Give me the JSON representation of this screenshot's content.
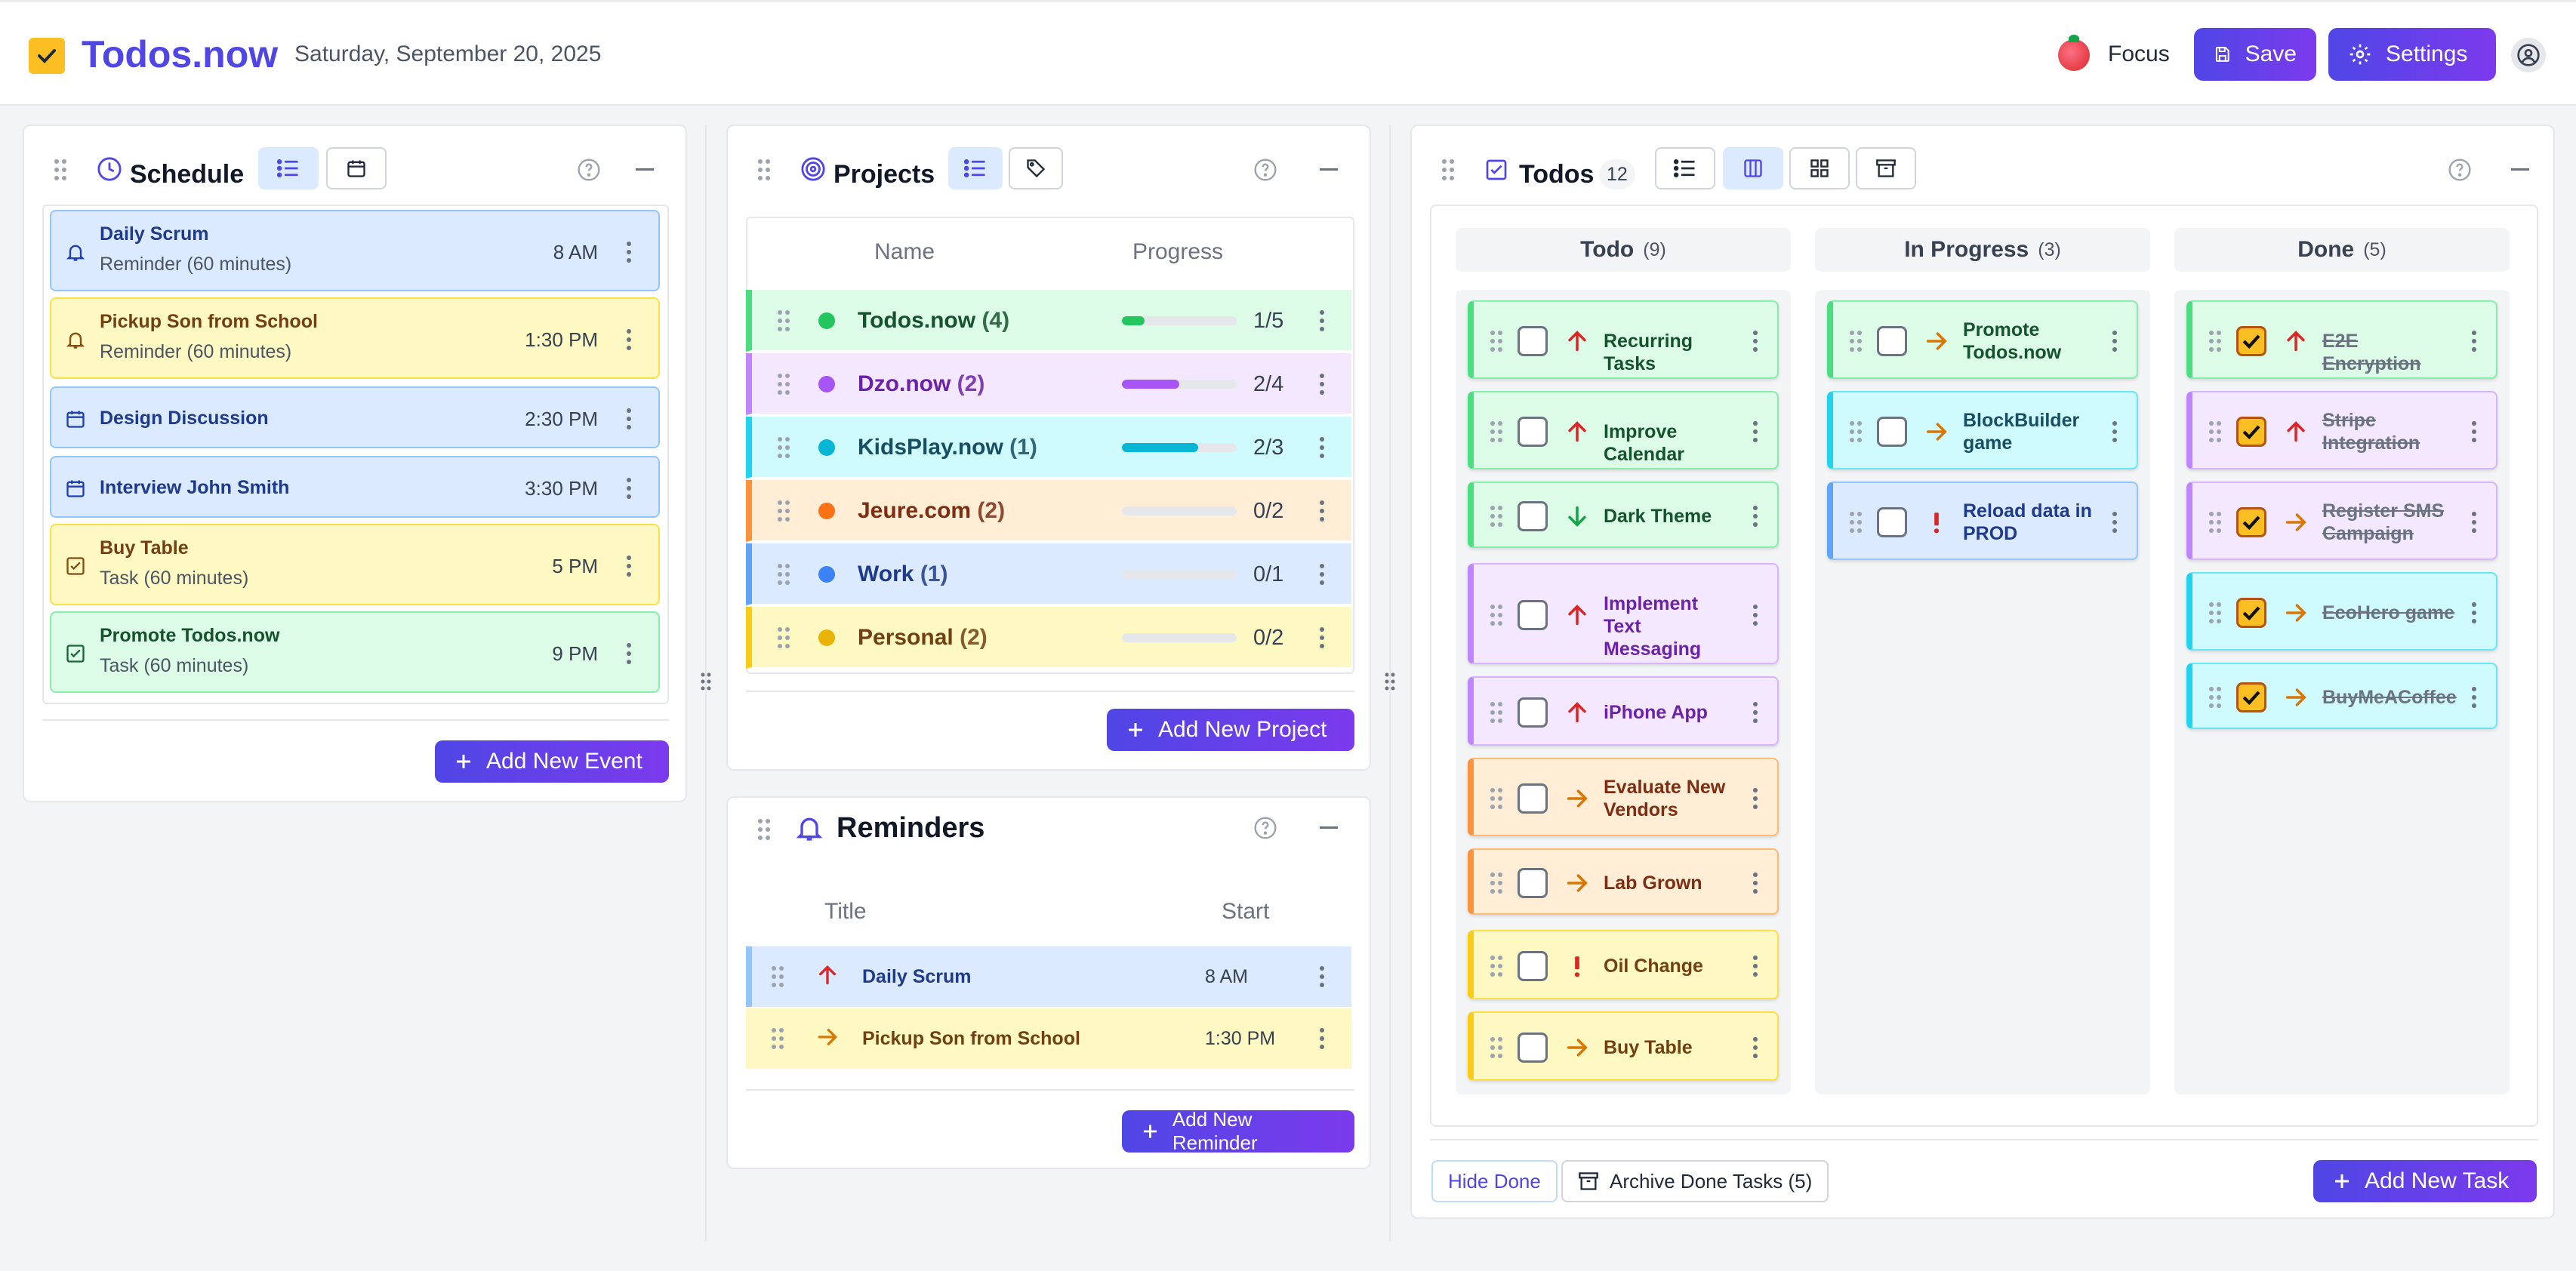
{
  "header": {
    "app_title": "Todos.now",
    "date": "Saturday, September 20, 2025",
    "focus_label": "Focus",
    "save_label": "Save",
    "settings_label": "Settings"
  },
  "schedule": {
    "title": "Schedule",
    "add_label": "Add New Event",
    "items": [
      {
        "title": "Daily Scrum",
        "subtitle": "Reminder (60 minutes)",
        "time": "8 AM",
        "color": "blue",
        "icon": "bell-icon"
      },
      {
        "title": "Pickup Son from School",
        "subtitle": "Reminder (60 minutes)",
        "time": "1:30 PM",
        "color": "yellow",
        "icon": "bell-icon"
      },
      {
        "title": "Design Discussion",
        "subtitle": "",
        "time": "2:30 PM",
        "color": "blue",
        "icon": "calendar-icon"
      },
      {
        "title": "Interview John Smith",
        "subtitle": "",
        "time": "3:30 PM",
        "color": "blue",
        "icon": "calendar-icon"
      },
      {
        "title": "Buy Table",
        "subtitle": "Task (60 minutes)",
        "time": "5 PM",
        "color": "yellow",
        "icon": "check-square-icon"
      },
      {
        "title": "Promote Todos.now",
        "subtitle": "Task (60 minutes)",
        "time": "9 PM",
        "color": "green",
        "icon": "check-square-icon"
      }
    ]
  },
  "projects": {
    "title": "Projects",
    "col_name": "Name",
    "col_progress": "Progress",
    "add_label": "Add New Project",
    "rows": [
      {
        "name": "Todos.now",
        "count": "(4)",
        "progress": "1/5",
        "fraction": 0.2,
        "bg": "#dcfce7",
        "border": "#4ade80",
        "dot": "#22c55e",
        "text": "#14532d",
        "fill": "#22c55e"
      },
      {
        "name": "Dzo.now",
        "count": "(2)",
        "progress": "2/4",
        "fraction": 0.5,
        "bg": "#f3e8ff",
        "border": "#c084fc",
        "dot": "#a855f7",
        "text": "#6b21a8",
        "fill": "#a855f7"
      },
      {
        "name": "KidsPlay.now",
        "count": "(1)",
        "progress": "2/3",
        "fraction": 0.667,
        "bg": "#cffafe",
        "border": "#22d3ee",
        "dot": "#06b6d4",
        "text": "#164e63",
        "fill": "#06b6d4"
      },
      {
        "name": "Jeure.com",
        "count": "(2)",
        "progress": "0/2",
        "fraction": 0,
        "bg": "#ffedd5",
        "border": "#fb923c",
        "dot": "#f97316",
        "text": "#7c2d12",
        "fill": "#f97316"
      },
      {
        "name": "Work",
        "count": "(1)",
        "progress": "0/1",
        "fraction": 0,
        "bg": "#dbeafe",
        "border": "#60a5fa",
        "dot": "#3b82f6",
        "text": "#1e3a8a",
        "fill": "#3b82f6"
      },
      {
        "name": "Personal",
        "count": "(2)",
        "progress": "0/2",
        "fraction": 0,
        "bg": "#fef9c3",
        "border": "#facc15",
        "dot": "#eab308",
        "text": "#713f12",
        "fill": "#eab308"
      }
    ]
  },
  "reminders": {
    "title": "Reminders",
    "col_title": "Title",
    "col_start": "Start",
    "add_label": "Add New Reminder",
    "rows": [
      {
        "title": "Daily Scrum",
        "start": "8 AM",
        "priority": "high"
      },
      {
        "title": "Pickup Son from School",
        "start": "1:30 PM",
        "priority": "medium"
      }
    ]
  },
  "todos": {
    "title": "Todos",
    "count": "12",
    "hide_done_label": "Hide Done",
    "archive_label": "Archive Done Tasks (5)",
    "add_label": "Add New Task",
    "columns": [
      {
        "name": "Todo",
        "count": "(9)",
        "cards": [
          {
            "label": "Recurring Tasks",
            "color": "green",
            "priority": "up",
            "done": false
          },
          {
            "label": "Improve Calendar",
            "color": "green",
            "priority": "up",
            "done": false
          },
          {
            "label": "Dark Theme",
            "color": "green",
            "priority": "down",
            "done": false
          },
          {
            "label": "Implement Text Messaging",
            "color": "purple",
            "priority": "up",
            "done": false
          },
          {
            "label": "iPhone App",
            "color": "purple",
            "priority": "up",
            "done": false
          },
          {
            "label": "Evaluate New Vendors",
            "color": "orange",
            "priority": "right",
            "done": false
          },
          {
            "label": "Lab Grown",
            "color": "orange",
            "priority": "right",
            "done": false
          },
          {
            "label": "Oil Change",
            "color": "yellow",
            "priority": "urgent",
            "done": false
          },
          {
            "label": "Buy Table",
            "color": "yellow",
            "priority": "right",
            "done": false
          }
        ]
      },
      {
        "name": "In Progress",
        "count": "(3)",
        "cards": [
          {
            "label": "Promote Todos.now",
            "color": "green",
            "priority": "right",
            "done": false
          },
          {
            "label": "BlockBuilder game",
            "color": "cyan",
            "priority": "right",
            "done": false
          },
          {
            "label": "Reload data in PROD",
            "color": "blue",
            "priority": "urgent",
            "done": false
          }
        ]
      },
      {
        "name": "Done",
        "count": "(5)",
        "cards": [
          {
            "label": "E2E Encryption",
            "color": "green",
            "priority": "up",
            "done": true
          },
          {
            "label": "Stripe Integration",
            "color": "purple",
            "priority": "up",
            "done": true
          },
          {
            "label": "Register SMS Campaign",
            "color": "purple",
            "priority": "right",
            "done": true
          },
          {
            "label": "EcoHero game",
            "color": "cyan",
            "priority": "right",
            "done": true
          },
          {
            "label": "BuyMeACoffee",
            "color": "cyan",
            "priority": "right",
            "done": true
          }
        ]
      }
    ]
  }
}
